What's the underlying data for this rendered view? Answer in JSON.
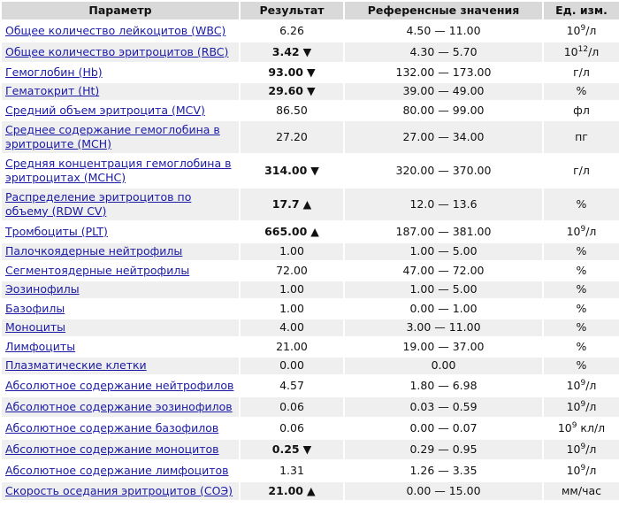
{
  "table": {
    "header": [
      "Параметр",
      "Результат",
      "Референсные значения",
      "Ед. изм."
    ],
    "rows": [
      {
        "parameter": "Общее количество лейкоцитов (WBC)",
        "result": "6.26",
        "reference": "4.50 — 11.00",
        "unit": {
          "base": "10",
          "exp": "9",
          "after": "/л"
        }
      },
      {
        "parameter": "Общее количество эритроцитов (RBC)",
        "result": "3.42",
        "flag": "▼",
        "reference": "4.30 — 5.70",
        "unit": {
          "base": "10",
          "exp": "12",
          "after": "/л"
        }
      },
      {
        "parameter": "Гемоглобин (Hb)",
        "result": "93.00",
        "flag": "▼",
        "reference": "132.00 — 173.00",
        "unit": "г/л"
      },
      {
        "parameter": "Гематокрит (Ht)",
        "result": "29.60",
        "flag": "▼",
        "reference": "39.00 — 49.00",
        "unit": "%"
      },
      {
        "parameter": "Средний объем эритроцита (MCV)",
        "result": "86.50",
        "reference": "80.00 — 99.00",
        "unit": "фл"
      },
      {
        "parameter": "Среднее содержание гемоглобина в эритроците (MCH)",
        "result": "27.20",
        "reference": "27.00 — 34.00",
        "unit": "пг"
      },
      {
        "parameter": "Средняя концентрация гемоглобина в эритроцитах (MCHC)",
        "result": "314.00",
        "flag": "▼",
        "reference": "320.00 — 370.00",
        "unit": "г/л"
      },
      {
        "parameter": "Распределение эритроцитов по объему (RDW CV)",
        "result": "17.7",
        "flag": "▲",
        "reference": "12.0 — 13.6",
        "unit": "%"
      },
      {
        "parameter": "Тромбоциты (PLT)",
        "result": "665.00",
        "flag": "▲",
        "reference": "187.00 — 381.00",
        "unit": {
          "base": "10",
          "exp": "9",
          "after": "/л"
        }
      },
      {
        "parameter": "Палочкоядерные нейтрофилы",
        "result": "1.00",
        "reference": "1.00 — 5.00",
        "unit": "%"
      },
      {
        "parameter": "Сегментоядерные нейтрофилы",
        "result": "72.00",
        "reference": "47.00 — 72.00",
        "unit": "%"
      },
      {
        "parameter": "Эозинофилы",
        "result": "1.00",
        "reference": "1.00 — 5.00",
        "unit": "%"
      },
      {
        "parameter": "Базофилы",
        "result": "1.00",
        "reference": "0.00 — 1.00",
        "unit": "%"
      },
      {
        "parameter": "Моноциты",
        "result": "4.00",
        "reference": "3.00 — 11.00",
        "unit": "%"
      },
      {
        "parameter": "Лимфоциты",
        "result": "21.00",
        "reference": "19.00 — 37.00",
        "unit": "%"
      },
      {
        "parameter": "Плазматические клетки",
        "result": "0.00",
        "reference": "0.00",
        "unit": "%"
      },
      {
        "parameter": "Абсолютное содержание нейтрофилов",
        "result": "4.57",
        "reference": "1.80 — 6.98",
        "unit": {
          "base": "10",
          "exp": "9",
          "after": "/л"
        }
      },
      {
        "parameter": "Абсолютное содержание эозинофилов",
        "result": "0.06",
        "reference": "0.03 — 0.59",
        "unit": {
          "base": "10",
          "exp": "9",
          "after": "/л"
        }
      },
      {
        "parameter": "Абсолютное содержание базофилов",
        "result": "0.06",
        "reference": "0.00 — 0.07",
        "unit": {
          "base": "10",
          "exp": "9",
          "after": " кл/л"
        }
      },
      {
        "parameter": "Абсолютное содержание моноцитов",
        "result": "0.25",
        "flag": "▼",
        "reference": "0.29 — 0.95",
        "unit": {
          "base": "10",
          "exp": "9",
          "after": "/л"
        }
      },
      {
        "parameter": "Абсолютное содержание лимфоцитов",
        "result": "1.31",
        "reference": "1.26 — 3.35",
        "unit": {
          "base": "10",
          "exp": "9",
          "after": "/л"
        }
      },
      {
        "parameter": "Скорость оседания эритроцитов (СОЭ)",
        "result": "21.00",
        "flag": "▲",
        "reference": "0.00 — 15.00",
        "unit": "мм/час"
      }
    ]
  }
}
